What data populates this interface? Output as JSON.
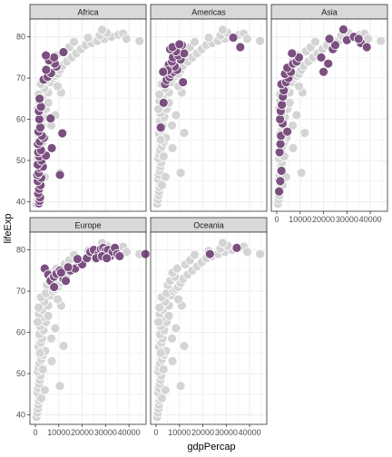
{
  "chart_data": {
    "type": "scatter",
    "xlabel": "gdpPercap",
    "ylabel": "lifeExp",
    "xlim": [
      0,
      45000
    ],
    "ylim": [
      39,
      83
    ],
    "x_ticks": [
      0,
      10000,
      20000,
      30000,
      40000
    ],
    "y_ticks": [
      40,
      50,
      60,
      70,
      80
    ],
    "grid": true,
    "colors": {
      "highlight": "#7b4f80",
      "background_points": "#d4d4d4",
      "point_outline": "#ffffff",
      "strip_fill": "#d9d9d9",
      "panel_border": "#333333",
      "grid": "#ebebeb"
    },
    "panels": [
      {
        "name": "Africa",
        "highlight": [
          [
            1500,
            39.6
          ],
          [
            1800,
            40.2
          ],
          [
            2000,
            41.0
          ],
          [
            1200,
            42.0
          ],
          [
            1600,
            43.1
          ],
          [
            2200,
            44.0
          ],
          [
            1000,
            45.0
          ],
          [
            2500,
            45.8
          ],
          [
            800,
            46.5
          ],
          [
            10500,
            46.5
          ],
          [
            1400,
            47.0
          ],
          [
            2000,
            48.2
          ],
          [
            3200,
            48.5
          ],
          [
            1000,
            49.0
          ],
          [
            2600,
            50.0
          ],
          [
            1600,
            51.0
          ],
          [
            4500,
            51.2
          ],
          [
            1200,
            52.0
          ],
          [
            2400,
            52.5
          ],
          [
            7000,
            53.0
          ],
          [
            1100,
            54.0
          ],
          [
            1900,
            54.6
          ],
          [
            3600,
            55.5
          ],
          [
            2800,
            56.0
          ],
          [
            11500,
            56.6
          ],
          [
            1300,
            57.0
          ],
          [
            2100,
            58.0
          ],
          [
            1700,
            60.0
          ],
          [
            6500,
            60.2
          ],
          [
            1500,
            62.0
          ],
          [
            2400,
            63.0
          ],
          [
            1800,
            65.0
          ],
          [
            3500,
            69.6
          ],
          [
            5200,
            70.3
          ],
          [
            6700,
            71.2
          ],
          [
            4600,
            72.0
          ],
          [
            9000,
            72.8
          ],
          [
            8300,
            73.5
          ],
          [
            5800,
            74.3
          ],
          [
            8000,
            75.0
          ],
          [
            4500,
            75.5
          ],
          [
            12000,
            76.3
          ]
        ]
      },
      {
        "name": "Americas",
        "highlight": [
          [
            2000,
            58.0
          ],
          [
            3200,
            64.0
          ],
          [
            3800,
            68.5
          ],
          [
            4500,
            69.5
          ],
          [
            5800,
            70.2
          ],
          [
            6500,
            71.0
          ],
          [
            7500,
            71.5
          ],
          [
            9000,
            72.0
          ],
          [
            4800,
            72.3
          ],
          [
            8000,
            72.8
          ],
          [
            5500,
            73.3
          ],
          [
            6800,
            74.0
          ],
          [
            10500,
            74.5
          ],
          [
            7200,
            75.0
          ],
          [
            9500,
            75.5
          ],
          [
            12000,
            76.0
          ],
          [
            8500,
            76.5
          ],
          [
            6000,
            77.0
          ],
          [
            7000,
            77.5
          ],
          [
            11000,
            78.0
          ],
          [
            10000,
            78.2
          ],
          [
            5000,
            71.8
          ],
          [
            11500,
            69.0
          ],
          [
            36000,
            77.5
          ],
          [
            33000,
            79.8
          ],
          [
            3000,
            71.5
          ]
        ]
      },
      {
        "name": "Asia",
        "highlight": [
          [
            1000,
            42.5
          ],
          [
            1500,
            45.0
          ],
          [
            2000,
            47.5
          ],
          [
            1200,
            52.0
          ],
          [
            1600,
            54.0
          ],
          [
            1800,
            56.0
          ],
          [
            2500,
            59.0
          ],
          [
            1400,
            60.0
          ],
          [
            1700,
            62.0
          ],
          [
            2200,
            63.5
          ],
          [
            2600,
            65.5
          ],
          [
            3000,
            67.0
          ],
          [
            2000,
            68.5
          ],
          [
            4000,
            69.0
          ],
          [
            5000,
            70.0
          ],
          [
            3500,
            71.0
          ],
          [
            6000,
            71.5
          ],
          [
            4500,
            72.5
          ],
          [
            7000,
            73.5
          ],
          [
            8500,
            74.0
          ],
          [
            9500,
            75.0
          ],
          [
            6500,
            76.0
          ],
          [
            20000,
            71.5
          ],
          [
            22000,
            73.5
          ],
          [
            19000,
            75.0
          ],
          [
            24000,
            77.0
          ],
          [
            25000,
            78.0
          ],
          [
            22500,
            79.5
          ],
          [
            30000,
            79.2
          ],
          [
            28500,
            81.8
          ],
          [
            33000,
            80.0
          ],
          [
            36000,
            78.5
          ],
          [
            35000,
            79.5
          ],
          [
            38500,
            77.5
          ],
          [
            4500,
            57.0
          ]
        ]
      },
      {
        "name": "Europe",
        "highlight": [
          [
            4000,
            75.5
          ],
          [
            5500,
            74.0
          ],
          [
            7000,
            73.0
          ],
          [
            6500,
            72.5
          ],
          [
            8000,
            73.5
          ],
          [
            9000,
            74.2
          ],
          [
            10500,
            75.0
          ],
          [
            12000,
            73.0
          ],
          [
            13000,
            72.5
          ],
          [
            15000,
            75.0
          ],
          [
            17000,
            75.5
          ],
          [
            19000,
            77.0
          ],
          [
            20000,
            76.5
          ],
          [
            22000,
            78.0
          ],
          [
            23500,
            79.5
          ],
          [
            25000,
            80.0
          ],
          [
            27000,
            79.0
          ],
          [
            28000,
            80.2
          ],
          [
            29000,
            80.5
          ],
          [
            30000,
            79.8
          ],
          [
            31000,
            80.0
          ],
          [
            32000,
            78.5
          ],
          [
            33000,
            79.5
          ],
          [
            34000,
            80.5
          ],
          [
            35000,
            79.0
          ],
          [
            36000,
            78.5
          ],
          [
            26000,
            78.0
          ],
          [
            28500,
            78.5
          ],
          [
            30500,
            78.0
          ],
          [
            47000,
            79.0
          ],
          [
            8000,
            71.0
          ],
          [
            11000,
            74.5
          ],
          [
            14000,
            75.8
          ],
          [
            18000,
            77.8
          ]
        ]
      },
      {
        "name": "Oceania",
        "highlight": [
          [
            23000,
            79.0
          ],
          [
            34500,
            80.5
          ]
        ]
      }
    ],
    "background_points": [
      [
        500,
        39.5
      ],
      [
        800,
        40.5
      ],
      [
        1100,
        41.5
      ],
      [
        1300,
        42.5
      ],
      [
        1500,
        43.5
      ],
      [
        1700,
        44.5
      ],
      [
        900,
        45.5
      ],
      [
        1200,
        46.5
      ],
      [
        1600,
        47.5
      ],
      [
        1900,
        48.5
      ],
      [
        2200,
        49.5
      ],
      [
        1000,
        50.5
      ],
      [
        1400,
        51.5
      ],
      [
        1800,
        52.5
      ],
      [
        2500,
        53.5
      ],
      [
        3200,
        54.5
      ],
      [
        4200,
        55.5
      ],
      [
        1300,
        56.5
      ],
      [
        12000,
        56.7
      ],
      [
        2300,
        57.5
      ],
      [
        2800,
        58.5
      ],
      [
        1700,
        59.5
      ],
      [
        3500,
        60.5
      ],
      [
        2000,
        61.5
      ],
      [
        4500,
        62.5
      ],
      [
        2600,
        63.5
      ],
      [
        1500,
        64.5
      ],
      [
        3000,
        65.5
      ],
      [
        5500,
        66.5
      ],
      [
        3800,
        67.5
      ],
      [
        2400,
        68.5
      ],
      [
        6500,
        69.0
      ],
      [
        4500,
        69.5
      ],
      [
        7500,
        70.0
      ],
      [
        8500,
        70.5
      ],
      [
        9500,
        71.0
      ],
      [
        5000,
        71.5
      ],
      [
        10500,
        72.0
      ],
      [
        6000,
        72.5
      ],
      [
        11500,
        73.0
      ],
      [
        8000,
        73.5
      ],
      [
        13500,
        74.0
      ],
      [
        7000,
        74.5
      ],
      [
        15500,
        75.0
      ],
      [
        9000,
        75.5
      ],
      [
        17500,
        76.0
      ],
      [
        12500,
        76.5
      ],
      [
        19500,
        77.0
      ],
      [
        14500,
        77.5
      ],
      [
        21500,
        78.0
      ],
      [
        24000,
        78.5
      ],
      [
        16500,
        78.8
      ],
      [
        26500,
        79.0
      ],
      [
        29500,
        79.5
      ],
      [
        22500,
        79.8
      ],
      [
        32500,
        80.0
      ],
      [
        27500,
        80.3
      ],
      [
        35500,
        80.5
      ],
      [
        30500,
        81.0
      ],
      [
        28500,
        81.7
      ],
      [
        37500,
        80.8
      ],
      [
        39000,
        79.5
      ],
      [
        44500,
        79.0
      ],
      [
        11000,
        66.5
      ],
      [
        8500,
        61.0
      ],
      [
        6800,
        58.5
      ],
      [
        10500,
        47.0
      ],
      [
        1000,
        62.5
      ],
      [
        1400,
        66.0
      ],
      [
        2000,
        55.0
      ],
      [
        3200,
        51.0
      ],
      [
        4000,
        46.0
      ],
      [
        2500,
        44.0
      ],
      [
        7000,
        53.0
      ],
      [
        9500,
        68.0
      ],
      [
        5500,
        64.0
      ]
    ]
  }
}
